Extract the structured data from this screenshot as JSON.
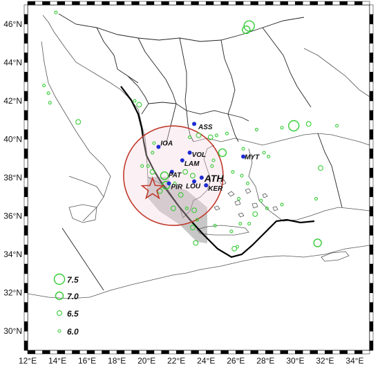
{
  "map": {
    "lon_range": [
      12,
      35
    ],
    "lat_range": [
      29,
      47
    ],
    "x_ticks": [
      "12°E",
      "14°E",
      "16°E",
      "18°E",
      "20°E",
      "22°E",
      "24°E",
      "26°E",
      "28°E",
      "30°E",
      "32°E",
      "34°E"
    ],
    "y_ticks": [
      "46°N",
      "44°N",
      "42°N",
      "40°N",
      "38°N",
      "36°N",
      "34°N",
      "32°N",
      "30°N"
    ],
    "colors": {
      "earthquake": "#33cc33",
      "station": "#1e2bd1",
      "circle": "#c0392b",
      "epicenter": "#c0392b",
      "shaded_region": "#bdbdbd",
      "plate_boundary": "#000000"
    },
    "stations": [
      {
        "code": "ASS",
        "lon": 23.2,
        "lat": 40.8
      },
      {
        "code": "IOA",
        "lon": 20.8,
        "lat": 39.6
      },
      {
        "code": "VOL",
        "lon": 22.9,
        "lat": 39.3
      },
      {
        "code": "LAM",
        "lon": 22.4,
        "lat": 38.9
      },
      {
        "code": "MYT",
        "lon": 26.5,
        "lat": 39.1
      },
      {
        "code": "PAT",
        "lon": 21.7,
        "lat": 38.3
      },
      {
        "code": "ATH",
        "lon": 23.7,
        "lat": 38.0
      },
      {
        "code": "PIR",
        "lon": 21.5,
        "lat": 37.7
      },
      {
        "code": "LOU",
        "lon": 23.2,
        "lat": 37.8
      },
      {
        "code": "KER",
        "lon": 24.0,
        "lat": 37.6
      }
    ],
    "epicenter": {
      "lon": 20.4,
      "lat": 37.4
    },
    "radius_circle": {
      "lon": 21.8,
      "lat": 38.1
    },
    "legend": [
      {
        "mag": 7.5,
        "label": "7.5"
      },
      {
        "mag": 7.0,
        "label": "7.0"
      },
      {
        "mag": 6.5,
        "label": "6.5"
      },
      {
        "mag": 6.0,
        "label": "6.0"
      }
    ]
  }
}
